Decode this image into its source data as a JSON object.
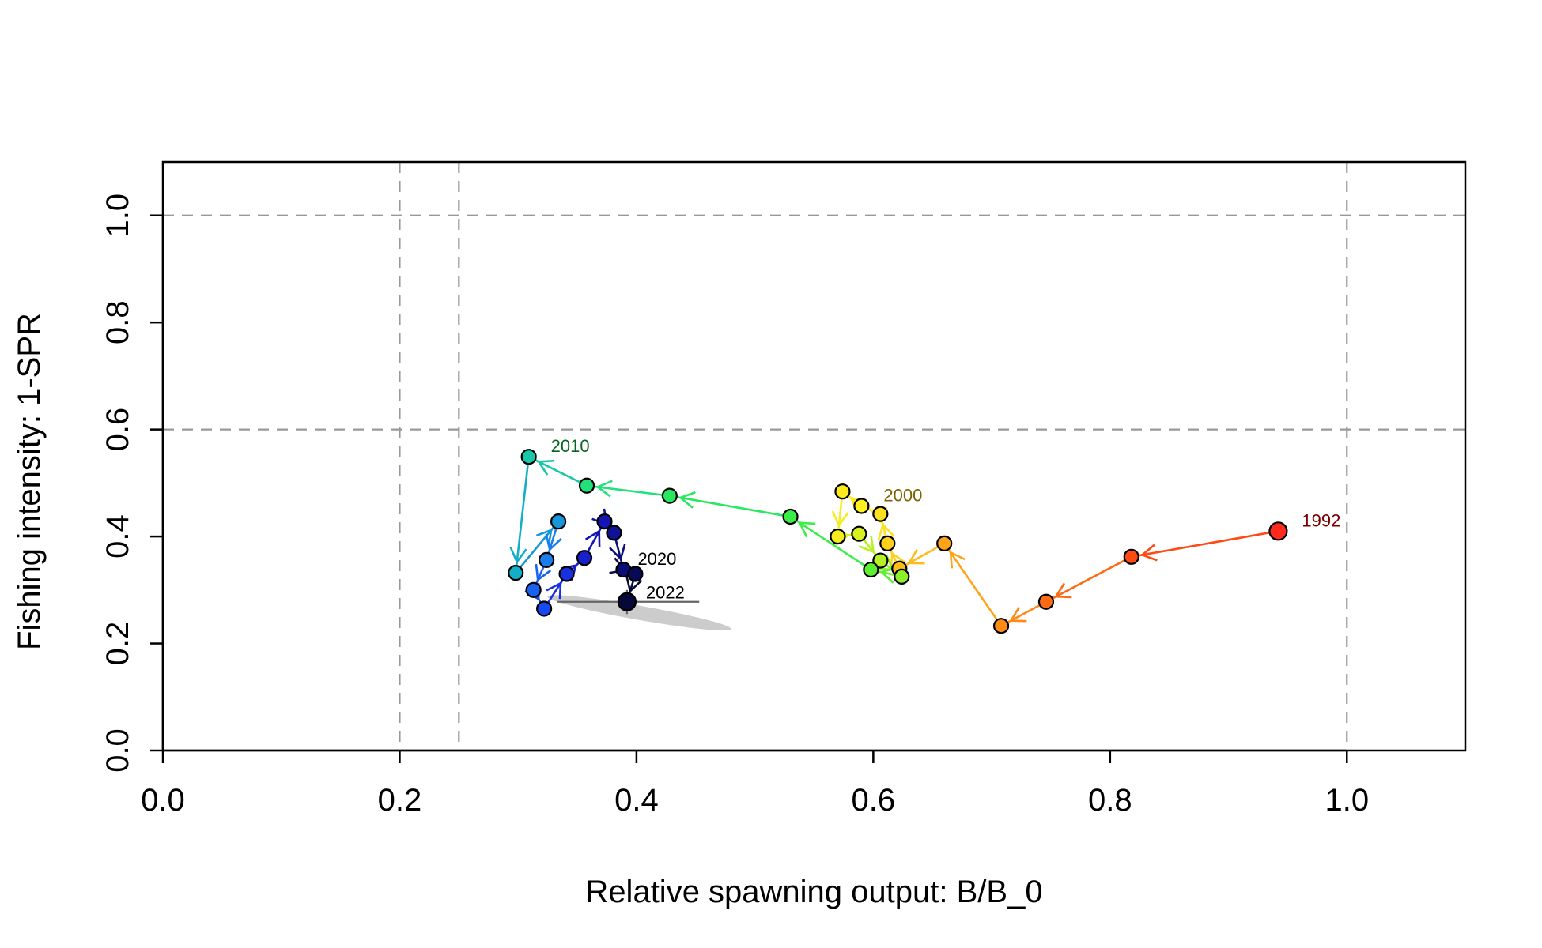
{
  "chart_data": {
    "type": "scatter",
    "subtype": "phase-plot-trajectory",
    "xlabel": "Relative spawning output: B/B_0",
    "ylabel": "Fishing intensity: 1-SPR",
    "xlim": [
      0.0,
      1.1
    ],
    "ylim": [
      0.0,
      1.1
    ],
    "x_ticks": [
      0.0,
      0.2,
      0.4,
      0.6,
      0.8,
      1.0
    ],
    "x_tick_labels": [
      "0.0",
      "0.2",
      "0.4",
      "0.6",
      "0.8",
      "1.0"
    ],
    "y_ticks": [
      0.0,
      0.2,
      0.4,
      0.6,
      0.8,
      1.0
    ],
    "y_tick_labels": [
      "0.0",
      "0.2",
      "0.4",
      "0.6",
      "0.8",
      "1.0"
    ],
    "reference_lines": {
      "vertical": [
        0.2,
        0.25,
        1.0
      ],
      "horizontal": [
        0.6,
        1.0
      ],
      "style": "dashed",
      "color": "#999999"
    },
    "series": [
      {
        "years": [
          1992,
          1993,
          1994,
          1995,
          1996,
          1997,
          1998,
          1999,
          2000,
          2001,
          2002,
          2003,
          2004,
          2005,
          2006,
          2007,
          2008,
          2009,
          2010,
          2011,
          2012,
          2013,
          2014,
          2015,
          2016,
          2017,
          2018,
          2019,
          2020,
          2021,
          2022
        ],
        "x": [
          0.942,
          0.818,
          0.746,
          0.708,
          0.66,
          0.622,
          0.612,
          0.606,
          0.59,
          0.574,
          0.57,
          0.588,
          0.606,
          0.624,
          0.598,
          0.53,
          0.428,
          0.358,
          0.309,
          0.298,
          0.334,
          0.324,
          0.313,
          0.322,
          0.341,
          0.356,
          0.373,
          0.381,
          0.389,
          0.399,
          0.392
        ],
        "y": [
          0.41,
          0.362,
          0.278,
          0.233,
          0.387,
          0.34,
          0.387,
          0.442,
          0.457,
          0.484,
          0.4,
          0.405,
          0.355,
          0.325,
          0.338,
          0.437,
          0.476,
          0.495,
          0.549,
          0.332,
          0.428,
          0.356,
          0.3,
          0.265,
          0.33,
          0.36,
          0.428,
          0.407,
          0.338,
          0.33,
          0.278
        ],
        "colors": [
          "#ff2a1f",
          "#ff4a14",
          "#ff6a14",
          "#ff8a16",
          "#ffa318",
          "#ffbb1a",
          "#ffd11c",
          "#ffe01e",
          "#fff020",
          "#ffe81c",
          "#f5ed20",
          "#d8f020",
          "#b7f024",
          "#8ef02a",
          "#5cf030",
          "#3aee48",
          "#28e860",
          "#22e07a",
          "#18c8a8",
          "#14aec6",
          "#1896dc",
          "#1a7eea",
          "#1a62ee",
          "#1848f0",
          "#1830e0",
          "#1620cc",
          "#1414b4",
          "#101296",
          "#0c0e78",
          "#080a58",
          "#060838"
        ],
        "point_border": "#000000",
        "last_point_larger": true
      }
    ],
    "year_labels": [
      {
        "text": "1992",
        "color": "#7a0000"
      },
      {
        "text": "2000",
        "color": "#7a6200"
      },
      {
        "text": "2010",
        "color": "#0a6420"
      },
      {
        "text": "2020",
        "color": "#000000"
      },
      {
        "text": "2022",
        "color": "#000000"
      }
    ],
    "final_year_uncertainty": {
      "x_interval": [
        0.333,
        0.453
      ],
      "y_interval": [
        0.255,
        0.3
      ],
      "ellipse_color": "#cccccc",
      "interval_color": "#666666"
    }
  }
}
